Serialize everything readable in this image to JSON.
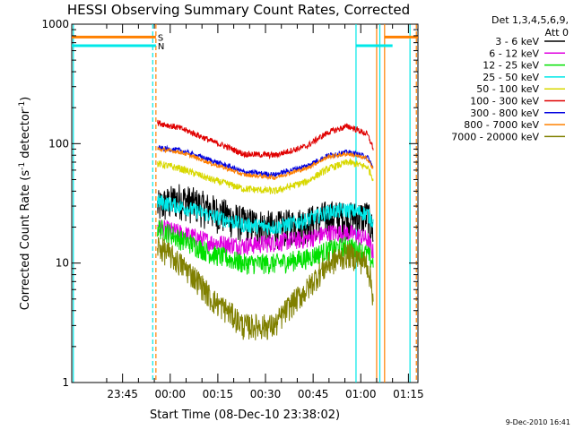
{
  "chart_data": {
    "type": "line",
    "title": "HESSI Observing Summary Count Rates, Corrected",
    "xlabel": "Start Time (08-Dec-10 23:38:02)",
    "ylabel_parts": [
      "Corrected Count Rate (s",
      "-1",
      " detector",
      "-1",
      ")"
    ],
    "ylim": [
      1,
      1000
    ],
    "yscale": "log",
    "xlim_min": [
      -9,
      100
    ],
    "x_ticks": [
      {
        "min": 7,
        "label": "23:45"
      },
      {
        "min": 22,
        "label": "00:00"
      },
      {
        "min": 37,
        "label": "00:15"
      },
      {
        "min": 52,
        "label": "00:30"
      },
      {
        "min": 67,
        "label": "00:45"
      },
      {
        "min": 82,
        "label": "01:00"
      },
      {
        "min": 97,
        "label": "01:15"
      }
    ],
    "y_ticks": [
      {
        "value": 1,
        "label": "1"
      },
      {
        "value": 10,
        "label": "10"
      },
      {
        "value": 100,
        "label": "100"
      },
      {
        "value": 1000,
        "label": "1000"
      }
    ],
    "legend_header": [
      "Det 1,3,4,5,6,9,",
      "Att 0"
    ],
    "legend_position": "right",
    "grid": false,
    "series": [
      {
        "name": "3 - 6 keV",
        "color": "#000000",
        "x": [
          18,
          25,
          35,
          45,
          55,
          65,
          72,
          78,
          84,
          86
        ],
        "y": [
          30,
          35,
          28,
          22,
          20,
          22,
          25,
          24,
          25,
          18
        ],
        "noise": 0.35
      },
      {
        "name": "6 - 12 keV",
        "color": "#e000e0",
        "x": [
          18,
          25,
          35,
          45,
          55,
          65,
          72,
          78,
          84,
          86
        ],
        "y": [
          20,
          18,
          15,
          14,
          15,
          16,
          18,
          18,
          16,
          12
        ],
        "noise": 0.18
      },
      {
        "name": "12 - 25 keV",
        "color": "#00e000",
        "x": [
          18,
          25,
          35,
          45,
          55,
          65,
          72,
          78,
          84,
          86
        ],
        "y": [
          20,
          16,
          12,
          10,
          10,
          11,
          13,
          14,
          12,
          10
        ],
        "noise": 0.2
      },
      {
        "name": "25 - 50 keV",
        "color": "#00e8e8",
        "x": [
          18,
          25,
          35,
          45,
          55,
          65,
          72,
          78,
          84,
          86
        ],
        "y": [
          33,
          30,
          25,
          21,
          20,
          23,
          27,
          28,
          26,
          22
        ],
        "noise": 0.15
      },
      {
        "name": "50 - 100 keV",
        "color": "#d8d800",
        "x": [
          18,
          25,
          35,
          45,
          55,
          65,
          72,
          78,
          84,
          86
        ],
        "y": [
          68,
          62,
          50,
          42,
          40,
          48,
          62,
          70,
          64,
          50
        ],
        "noise": 0.07
      },
      {
        "name": "100 - 300 keV",
        "color": "#e00000",
        "x": [
          18,
          25,
          35,
          45,
          55,
          65,
          72,
          78,
          84,
          86
        ],
        "y": [
          150,
          135,
          105,
          82,
          80,
          95,
          125,
          140,
          120,
          90
        ],
        "noise": 0.06
      },
      {
        "name": "300 - 800 keV",
        "color": "#0000e0",
        "x": [
          18,
          25,
          35,
          45,
          55,
          65,
          72,
          78,
          84,
          86
        ],
        "y": [
          92,
          88,
          72,
          58,
          55,
          65,
          80,
          85,
          78,
          62
        ],
        "noise": 0.05
      },
      {
        "name": "800 - 7000 keV",
        "color": "#ff8000",
        "x": [
          18,
          25,
          35,
          45,
          55,
          65,
          72,
          78,
          84,
          86
        ],
        "y": [
          90,
          85,
          68,
          55,
          52,
          62,
          78,
          82,
          75,
          60
        ],
        "noise": 0.04
      },
      {
        "name": "7000 - 20000 keV",
        "color": "#808000",
        "x": [
          18,
          25,
          35,
          45,
          55,
          65,
          72,
          78,
          84,
          86
        ],
        "y": [
          14,
          10,
          5,
          3,
          3,
          6,
          10,
          12,
          10,
          5
        ],
        "noise": 0.25
      }
    ],
    "segments": [
      {
        "flag": "S",
        "color": "#ff8000",
        "spans_min": [
          [
            -9,
            17.5
          ],
          [
            89.5,
            100
          ]
        ],
        "level": 780
      },
      {
        "flag": "N",
        "color": "#00e8e8",
        "spans_min": [
          [
            -9,
            17.5
          ],
          [
            80.5,
            92
          ]
        ],
        "level": 660
      }
    ],
    "vertical_markers": [
      {
        "min": -8.5,
        "color": "#00e8e8",
        "style": "solid"
      },
      {
        "min": 16.5,
        "color": "#00e8e8",
        "style": "dashed"
      },
      {
        "min": 17.5,
        "color": "#ff8000",
        "style": "dashed"
      },
      {
        "min": 80.5,
        "color": "#00e8e8",
        "style": "solid"
      },
      {
        "min": 87,
        "color": "#ff8000",
        "style": "solid"
      },
      {
        "min": 88,
        "color": "#00e8e8",
        "style": "solid"
      },
      {
        "min": 89.5,
        "color": "#ff8000",
        "style": "solid"
      },
      {
        "min": 97.5,
        "color": "#00e8e8",
        "style": "solid"
      },
      {
        "min": 99.5,
        "color": "#ff8000",
        "style": "dashed"
      }
    ],
    "footer": "9-Dec-2010 16:41"
  }
}
